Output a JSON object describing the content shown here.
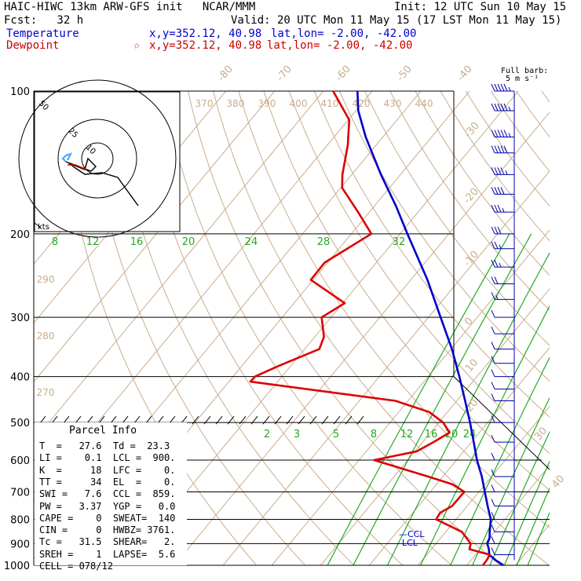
{
  "header": {
    "left_title": "HAIC-HIWC 13km ARW-GFS init   NCAR/MMM",
    "init": "Init: 12 UTC Sun 10 May 15",
    "fcst": "Fcst:   32 h",
    "valid": "Valid: 20 UTC Mon 11 May 15 (17 LST Mon 11 May 15)",
    "temp_label": "Temperature",
    "temp_xy": "x,y=352.12, 40.98",
    "temp_latlon": "lat,lon= -2.00, -42.00",
    "dew_label": "Dewpoint",
    "dew_xy": "x,y=352.12, 40.98",
    "dew_latlon": "lat,lon= -2.00, -42.00"
  },
  "barb_legend": {
    "line1": "Full barb:",
    "line2": "5 m s⁻¹"
  },
  "parcel_info": {
    "title": "Parcel Info",
    "rows": [
      "T  =   27.6  Td =  23.3",
      "LI =    0.1  LCL =  900.",
      "K  =     18  LFC =    0.",
      "TT =     34  EL  =    0.",
      "SWI =   7.6  CCL =  859.",
      "PW =   3.37  YGP =   0.0",
      "CAPE =    0  SWEAT=  140",
      "CIN =     0  HWBZ= 3761.",
      "Tc =   31.5  SHEAR=   2.",
      "SREH =    1  LAPSE=  5.6",
      "CELL = 078/12"
    ]
  },
  "chart_data": {
    "type": "line",
    "title": "",
    "y_axis": {
      "label": "",
      "scale": "log-pressure",
      "ticks": [
        100,
        200,
        300,
        400,
        500,
        600,
        700,
        800,
        900,
        1000
      ],
      "range": [
        1000,
        100
      ]
    },
    "isotherm_labels": [
      "-80",
      "-70",
      "-60",
      "-50",
      "-40",
      "-30",
      "-20",
      "-10",
      "0",
      "10",
      "20",
      "30",
      "40"
    ],
    "theta_labels": [
      "370",
      "380",
      "390",
      "400",
      "410",
      "420",
      "430",
      "440"
    ],
    "theta_low_labels": [
      "290",
      "280",
      "270"
    ],
    "mixing_ratio_upper_labels": [
      "8",
      "12",
      "16",
      "20",
      "24",
      "28",
      "32"
    ],
    "mixing_ratio_lower_labels": [
      "2",
      "3",
      "5",
      "8",
      "12",
      "16",
      "20",
      "24"
    ],
    "annotations": [
      "CCL",
      "LCL"
    ],
    "hodograph": {
      "ring_labels": [
        "10",
        "25",
        "50"
      ],
      "unit_label": "kts"
    },
    "colors": {
      "temperature": "#0000cc",
      "dewpoint": "#dd0000",
      "isotherm": "#c8ad8c",
      "mixing_ratio": "#22aa22",
      "isobar": "#000000",
      "wind_barb": "#0000aa",
      "hodograph_trace": "#000000",
      "hodograph_tail": "#44aaff"
    },
    "series": [
      {
        "name": "Temperature",
        "points": [
          {
            "p": 1000,
            "t": 27.5
          },
          {
            "p": 975,
            "t": 25.0
          },
          {
            "p": 950,
            "t": 22.8
          },
          {
            "p": 925,
            "t": 21.8
          },
          {
            "p": 900,
            "t": 20.5
          },
          {
            "p": 875,
            "t": 20.0
          },
          {
            "p": 850,
            "t": 19.0
          },
          {
            "p": 800,
            "t": 17.1
          },
          {
            "p": 750,
            "t": 14.2
          },
          {
            "p": 700,
            "t": 11.2
          },
          {
            "p": 650,
            "t": 8.0
          },
          {
            "p": 600,
            "t": 4.2
          },
          {
            "p": 550,
            "t": 0.5
          },
          {
            "p": 500,
            "t": -3.6
          },
          {
            "p": 450,
            "t": -8.3
          },
          {
            "p": 400,
            "t": -13.6
          },
          {
            "p": 350,
            "t": -19.8
          },
          {
            "p": 300,
            "t": -27.5
          },
          {
            "p": 250,
            "t": -36.6
          },
          {
            "p": 200,
            "t": -48.5
          },
          {
            "p": 175,
            "t": -55.5
          },
          {
            "p": 150,
            "t": -64.0
          },
          {
            "p": 125,
            "t": -73.5
          },
          {
            "p": 110,
            "t": -79.5
          },
          {
            "p": 100,
            "t": -83.0
          }
        ]
      },
      {
        "name": "Dewpoint",
        "points": [
          {
            "p": 1000,
            "t": 23.3
          },
          {
            "p": 975,
            "t": 23.2
          },
          {
            "p": 950,
            "t": 22.9
          },
          {
            "p": 925,
            "t": 17.8
          },
          {
            "p": 900,
            "t": 17.1
          },
          {
            "p": 850,
            "t": 13.3
          },
          {
            "p": 800,
            "t": 5.9
          },
          {
            "p": 775,
            "t": 5.6
          },
          {
            "p": 750,
            "t": 6.9
          },
          {
            "p": 700,
            "t": 7.0
          },
          {
            "p": 675,
            "t": 3.3
          },
          {
            "p": 650,
            "t": -3.0
          },
          {
            "p": 600,
            "t": -16.9
          },
          {
            "p": 575,
            "t": -9.6
          },
          {
            "p": 550,
            "t": -7.8
          },
          {
            "p": 525,
            "t": -6.1
          },
          {
            "p": 500,
            "t": -9.1
          },
          {
            "p": 475,
            "t": -13.8
          },
          {
            "p": 450,
            "t": -22.6
          },
          {
            "p": 410,
            "t": -55.6
          },
          {
            "p": 400,
            "t": -55.5
          },
          {
            "p": 380,
            "t": -52.5
          },
          {
            "p": 350,
            "t": -47.0
          },
          {
            "p": 330,
            "t": -48.1
          },
          {
            "p": 300,
            "t": -51.9
          },
          {
            "p": 280,
            "t": -49.6
          },
          {
            "p": 250,
            "t": -60.5
          },
          {
            "p": 230,
            "t": -60.6
          },
          {
            "p": 200,
            "t": -55.9
          },
          {
            "p": 180,
            "t": -62.3
          },
          {
            "p": 160,
            "t": -69.7
          },
          {
            "p": 150,
            "t": -71.9
          },
          {
            "p": 130,
            "t": -75.8
          },
          {
            "p": 115,
            "t": -79.8
          },
          {
            "p": 100,
            "t": -88.0
          }
        ]
      }
    ],
    "wind_profile": [
      {
        "p": 100,
        "speed": 55
      },
      {
        "p": 110,
        "speed": 55
      },
      {
        "p": 125,
        "speed": 55
      },
      {
        "p": 135,
        "speed": 50
      },
      {
        "p": 150,
        "speed": 45
      },
      {
        "p": 165,
        "speed": 40
      },
      {
        "p": 180,
        "speed": 35
      },
      {
        "p": 200,
        "speed": 30
      },
      {
        "p": 215,
        "speed": 25
      },
      {
        "p": 235,
        "speed": 25
      },
      {
        "p": 255,
        "speed": 20
      },
      {
        "p": 275,
        "speed": 15
      },
      {
        "p": 300,
        "speed": 10
      },
      {
        "p": 325,
        "speed": 10
      },
      {
        "p": 350,
        "speed": 10
      },
      {
        "p": 375,
        "speed": 10
      },
      {
        "p": 400,
        "speed": 10
      },
      {
        "p": 425,
        "speed": 10
      },
      {
        "p": 450,
        "speed": 10
      },
      {
        "p": 500,
        "speed": 10
      },
      {
        "p": 550,
        "speed": 10
      },
      {
        "p": 600,
        "speed": 10
      },
      {
        "p": 650,
        "speed": 10
      },
      {
        "p": 700,
        "speed": 10
      },
      {
        "p": 750,
        "speed": 10
      },
      {
        "p": 800,
        "speed": 10
      },
      {
        "p": 850,
        "speed": 10
      },
      {
        "p": 900,
        "speed": 10
      },
      {
        "p": 950,
        "speed": 10
      }
    ]
  }
}
